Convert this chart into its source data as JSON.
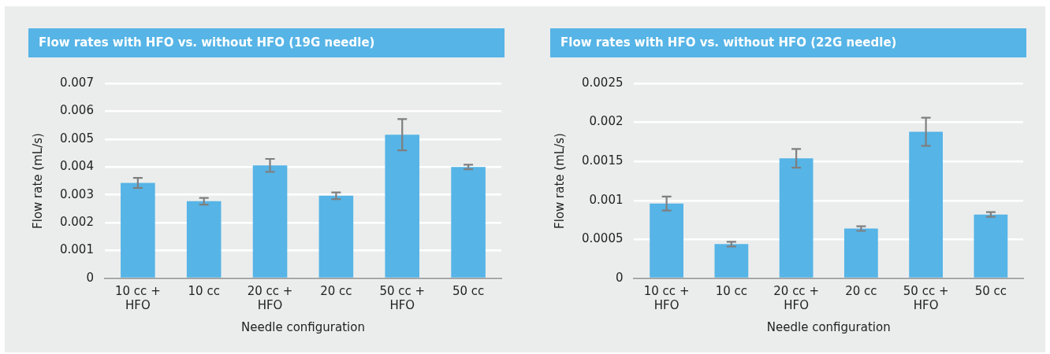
{
  "chart_data": [
    {
      "type": "bar",
      "title": "Flow rates with HFO vs. without HFO (19G needle)",
      "xlabel": "Needle configuration",
      "ylabel": "Flow rate (mL/s)",
      "categories": [
        "10 cc + HFO",
        "10 cc",
        "20 cc + HFO",
        "20 cc",
        "50 cc + HFO",
        "50 cc"
      ],
      "values": [
        0.00343,
        0.00277,
        0.00406,
        0.00297,
        0.00516,
        0.004
      ],
      "errors": [
        0.00018,
        0.00012,
        0.00023,
        0.00012,
        0.00056,
        8e-05
      ],
      "color": "#56b4e6",
      "ylim": [
        0,
        0.007
      ],
      "yticks": [
        0,
        0.001,
        0.002,
        0.003,
        0.004,
        0.005,
        0.006,
        0.007
      ],
      "grid": "y"
    },
    {
      "type": "bar",
      "title": "Flow rates with HFO vs. without HFO (22G needle)",
      "xlabel": "Needle configuration",
      "ylabel": "Flow rate (mL/s)",
      "categories": [
        "10 cc + HFO",
        "10 cc",
        "20 cc + HFO",
        "20 cc",
        "50 cc + HFO",
        "50 cc"
      ],
      "values": [
        0.00096,
        0.00044,
        0.00154,
        0.00064,
        0.00188,
        0.00082
      ],
      "errors": [
        9e-05,
        3e-05,
        0.00012,
        3e-05,
        0.00018,
        3e-05
      ],
      "color": "#56b4e6",
      "ylim": [
        0,
        0.0025
      ],
      "yticks": [
        0,
        0.0005,
        0.001,
        0.0015,
        0.002,
        0.0025
      ],
      "grid": "y"
    }
  ]
}
